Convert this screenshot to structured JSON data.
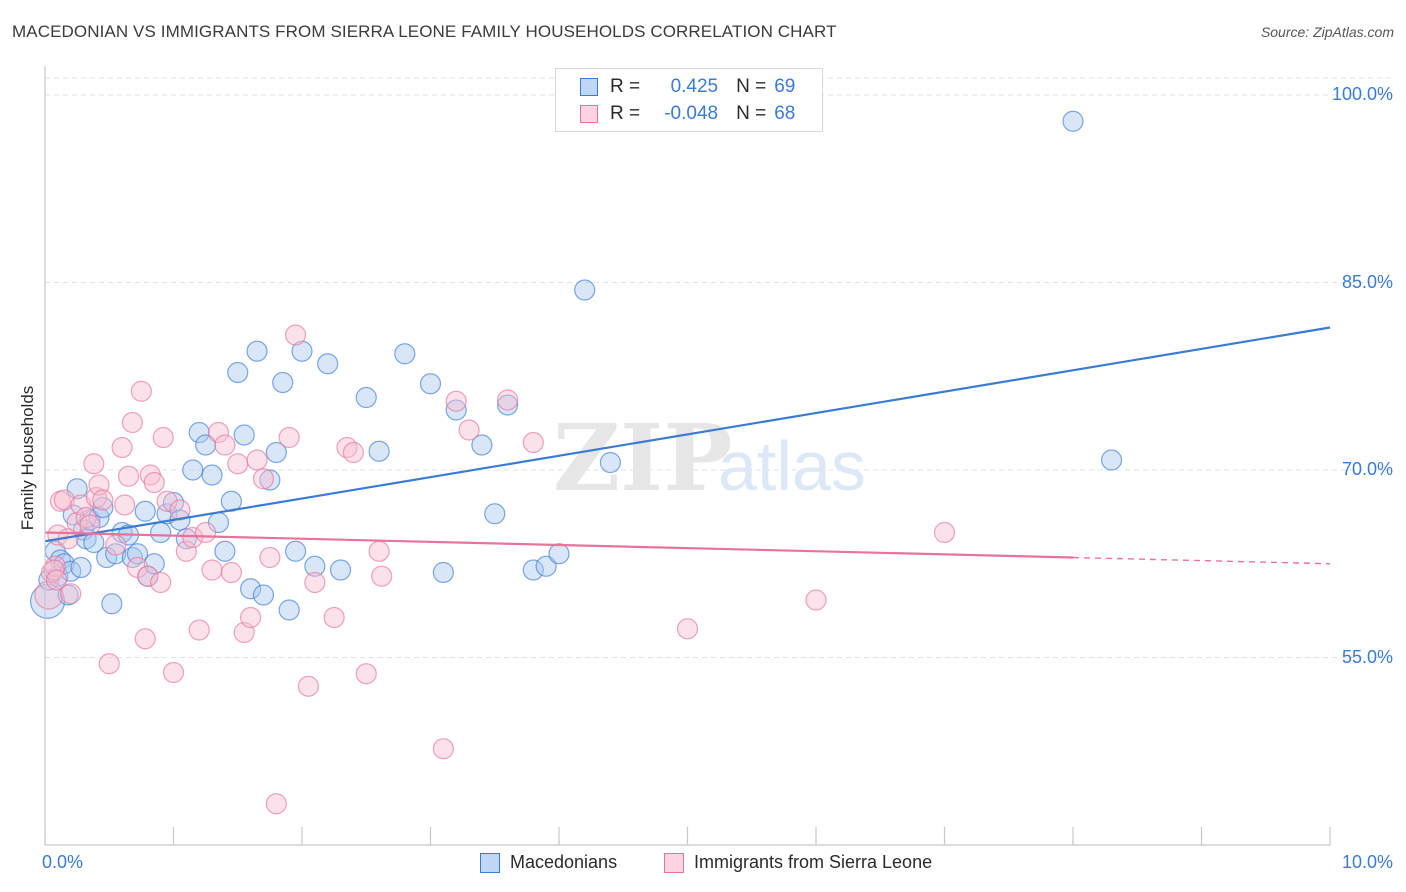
{
  "chart_data": {
    "type": "scatter",
    "title": "MACEDONIAN VS IMMIGRANTS FROM SIERRA LEONE FAMILY HOUSEHOLDS CORRELATION CHART",
    "source": "Source: ZipAtlas.com",
    "ylabel": "Family Households",
    "xlabel": "",
    "xlim": [
      0,
      10
    ],
    "ylim": [
      40,
      102
    ],
    "x_tick_labels": [
      "0.0%",
      "10.0%"
    ],
    "y_ticks": [
      55,
      70,
      85,
      100
    ],
    "y_tick_labels": [
      "55.0%",
      "70.0%",
      "85.0%",
      "100.0%"
    ],
    "watermark": {
      "zip": "ZIP",
      "atlas": "atlas"
    },
    "legend": {
      "r_label": "R =",
      "n_label": "N =",
      "rows": [
        {
          "name": "Macedonians",
          "r": "0.425",
          "n": "69",
          "color": "#3a7bd5"
        },
        {
          "name": "Immigrants from Sierra Leone",
          "r": "-0.048",
          "n": "68",
          "color": "#e8729a"
        }
      ]
    },
    "series": [
      {
        "name": "Macedonians",
        "color": "#3a7bd5",
        "fill": "#a9c8ef",
        "trend": {
          "x": [
            0,
            10
          ],
          "y": [
            64.3,
            81.4
          ],
          "solid_to": 10
        },
        "points": [
          [
            0.02,
            59.5
          ],
          [
            0.03,
            61.2
          ],
          [
            0.08,
            63.5
          ],
          [
            0.1,
            61.5
          ],
          [
            0.12,
            62.8
          ],
          [
            0.15,
            62.5
          ],
          [
            0.18,
            60.0
          ],
          [
            0.2,
            61.9
          ],
          [
            0.22,
            66.4
          ],
          [
            0.25,
            68.5
          ],
          [
            0.28,
            62.2
          ],
          [
            0.3,
            65.2
          ],
          [
            0.32,
            64.5
          ],
          [
            0.35,
            66.0
          ],
          [
            0.38,
            64.2
          ],
          [
            0.42,
            66.2
          ],
          [
            0.45,
            67.0
          ],
          [
            0.48,
            63.0
          ],
          [
            0.52,
            59.3
          ],
          [
            0.55,
            63.3
          ],
          [
            0.6,
            65.0
          ],
          [
            0.65,
            64.8
          ],
          [
            0.68,
            63.0
          ],
          [
            0.72,
            63.3
          ],
          [
            0.78,
            66.7
          ],
          [
            0.8,
            61.5
          ],
          [
            0.85,
            62.5
          ],
          [
            0.9,
            65.0
          ],
          [
            0.95,
            66.5
          ],
          [
            1.0,
            67.4
          ],
          [
            1.05,
            66.0
          ],
          [
            1.1,
            64.5
          ],
          [
            1.15,
            70.0
          ],
          [
            1.2,
            73.0
          ],
          [
            1.25,
            72.0
          ],
          [
            1.3,
            69.6
          ],
          [
            1.35,
            65.8
          ],
          [
            1.4,
            63.5
          ],
          [
            1.45,
            67.5
          ],
          [
            1.5,
            77.8
          ],
          [
            1.55,
            72.8
          ],
          [
            1.6,
            60.5
          ],
          [
            1.65,
            79.5
          ],
          [
            1.7,
            60.0
          ],
          [
            1.75,
            69.2
          ],
          [
            1.8,
            71.4
          ],
          [
            1.85,
            77.0
          ],
          [
            1.9,
            58.8
          ],
          [
            1.95,
            63.5
          ],
          [
            2.0,
            79.5
          ],
          [
            2.1,
            62.3
          ],
          [
            2.2,
            78.5
          ],
          [
            2.3,
            62.0
          ],
          [
            2.5,
            75.8
          ],
          [
            2.6,
            71.5
          ],
          [
            2.8,
            79.3
          ],
          [
            3.0,
            76.9
          ],
          [
            3.1,
            61.8
          ],
          [
            3.2,
            74.8
          ],
          [
            3.4,
            72.0
          ],
          [
            3.5,
            66.5
          ],
          [
            3.6,
            75.2
          ],
          [
            3.8,
            62.0
          ],
          [
            3.9,
            62.3
          ],
          [
            4.0,
            63.3
          ],
          [
            4.2,
            84.4
          ],
          [
            4.4,
            70.6
          ],
          [
            8.0,
            97.9
          ],
          [
            8.3,
            70.8
          ]
        ],
        "sizes": [
          34,
          20,
          20,
          20,
          20,
          20,
          20,
          20,
          20,
          20,
          20,
          20,
          20,
          20,
          20,
          20,
          20,
          20,
          20,
          20,
          20,
          20,
          20,
          20,
          20,
          20,
          20,
          20,
          20,
          20,
          20,
          20,
          20,
          20,
          20,
          20,
          20,
          20,
          20,
          20,
          20,
          20,
          20,
          20,
          20,
          20,
          20,
          20,
          20,
          20,
          20,
          20,
          20,
          20,
          20,
          20,
          20,
          20,
          20,
          20,
          20,
          20,
          20,
          20,
          20,
          20,
          20,
          20,
          20
        ]
      },
      {
        "name": "Immigrants from Sierra Leone",
        "color": "#e8729a",
        "fill": "#f6bfd1",
        "trend": {
          "x": [
            0,
            10
          ],
          "y": [
            65.0,
            62.5
          ],
          "solid_to": 8
        }
      }
    ]
  }
}
